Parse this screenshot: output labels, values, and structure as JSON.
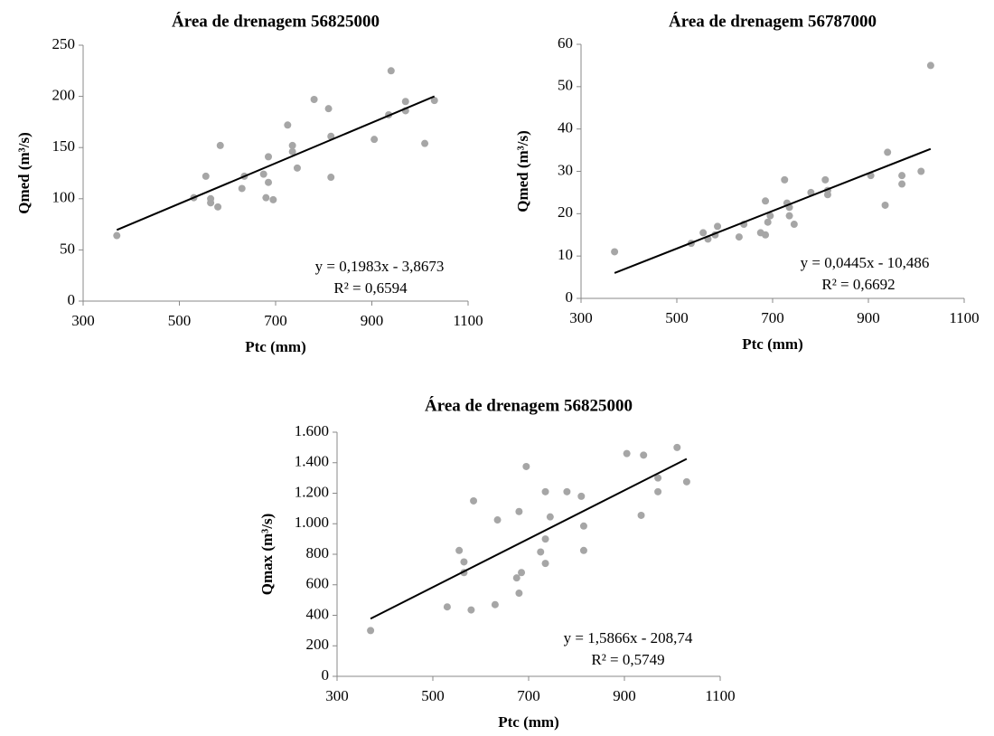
{
  "chart_data": [
    {
      "type": "scatter",
      "title": "Área de drenagem 56825000",
      "xlabel": "Ptc (mm)",
      "ylabel": "Qmed (m³/s)",
      "x": [
        370,
        530,
        555,
        565,
        565,
        580,
        585,
        630,
        635,
        675,
        680,
        685,
        685,
        695,
        725,
        735,
        735,
        745,
        780,
        810,
        815,
        815,
        905,
        935,
        940,
        970,
        970,
        1010,
        1030
      ],
      "y": [
        64,
        101,
        122,
        100,
        96,
        92,
        152,
        110,
        122,
        124,
        101,
        141,
        116,
        99,
        172,
        146,
        152,
        130,
        197,
        188,
        121,
        161,
        158,
        182,
        225,
        195,
        186,
        154,
        196
      ],
      "trend": {
        "x": [
          370,
          1030
        ],
        "y": [
          69.5,
          200
        ]
      },
      "equation": "y = 0,1983x - 3,8673",
      "r2": "R² = 0,6594",
      "xlim": [
        300,
        1100
      ],
      "ylim": [
        0,
        250
      ],
      "xticks": [
        300,
        500,
        700,
        900,
        1100
      ],
      "yticks": [
        0,
        50,
        100,
        150,
        200,
        250
      ],
      "color": "#a6a6a6",
      "line_color": "#000000"
    },
    {
      "type": "scatter",
      "title": "Área de drenagem 56787000",
      "xlabel": "Ptc (mm)",
      "ylabel": "Qmed (m³/s)",
      "x": [
        370,
        530,
        555,
        565,
        580,
        585,
        630,
        640,
        675,
        685,
        685,
        690,
        695,
        725,
        730,
        735,
        735,
        745,
        780,
        810,
        815,
        815,
        905,
        935,
        940,
        970,
        970,
        1010,
        1030
      ],
      "y": [
        11,
        13,
        15.5,
        14,
        15,
        17,
        14.5,
        17.5,
        15.5,
        15,
        23,
        18,
        19.5,
        28,
        22.5,
        19.5,
        21.5,
        17.5,
        25,
        28,
        24.5,
        25.5,
        29,
        22,
        34.5,
        27,
        29,
        30,
        55
      ],
      "trend": {
        "x": [
          370,
          1030
        ],
        "y": [
          6,
          35.3
        ]
      },
      "equation": "y = 0,0445x - 10,486",
      "r2": "R² = 0,6692",
      "xlim": [
        300,
        1100
      ],
      "ylim": [
        0,
        60
      ],
      "xticks": [
        300,
        500,
        700,
        900,
        1100
      ],
      "yticks": [
        0,
        10,
        20,
        30,
        40,
        50,
        60
      ],
      "color": "#a6a6a6",
      "line_color": "#000000"
    },
    {
      "type": "scatter",
      "title": "Área de drenagem 56825000",
      "xlabel": "Ptc (mm)",
      "ylabel": "Qmax (m³/s)",
      "x": [
        370,
        530,
        555,
        565,
        565,
        580,
        585,
        630,
        635,
        675,
        680,
        680,
        685,
        695,
        725,
        735,
        735,
        735,
        745,
        780,
        810,
        815,
        815,
        905,
        935,
        940,
        970,
        970,
        1010,
        1030
      ],
      "y": [
        300,
        455,
        825,
        750,
        680,
        435,
        1150,
        470,
        1025,
        645,
        545,
        1080,
        680,
        1375,
        815,
        740,
        1210,
        900,
        1045,
        1210,
        1180,
        985,
        825,
        1460,
        1055,
        1450,
        1210,
        1300,
        1500,
        1275
      ],
      "trend": {
        "x": [
          370,
          1030
        ],
        "y": [
          378,
          1425
        ]
      },
      "equation": "y = 1,5866x - 208,74",
      "r2": "R² = 0,5749",
      "xlim": [
        300,
        1100
      ],
      "ylim": [
        0,
        1600
      ],
      "xticks": [
        300,
        500,
        700,
        900,
        1100
      ],
      "yticks": [
        0,
        200,
        400,
        600,
        800,
        {
          "value": 1000,
          "label": "1.000"
        },
        {
          "value": 1200,
          "label": "1.200"
        },
        {
          "value": 1400,
          "label": "1.400"
        },
        {
          "value": 1600,
          "label": "1.600"
        }
      ],
      "color": "#a6a6a6",
      "line_color": "#000000"
    }
  ]
}
